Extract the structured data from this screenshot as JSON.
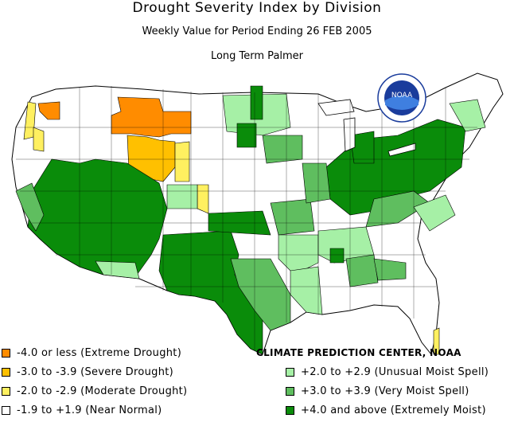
{
  "title": "Drought Severity Index by Division",
  "subtitle": "Weekly Value for Period Ending 26 FEB 2005",
  "index_name": "Long Term Palmer",
  "credit": "CLIMATE PREDICTION CENTER, NOAA",
  "logo_text": "NOAA",
  "legend": [
    {
      "label": "-4.0 or less (Extreme Drought)",
      "color": "#FF8C00"
    },
    {
      "label": "-3.0 to -3.9 (Severe Drought)",
      "color": "#FFC000"
    },
    {
      "label": "-2.0 to -2.9 (Moderate Drought)",
      "color": "#FFF060"
    },
    {
      "label": "-1.9 to +1.9 (Near Normal)",
      "color": "#FFFFFF"
    },
    {
      "label": "+2.0 to +2.9 (Unusual Moist Spell)",
      "color": "#A6F0A6"
    },
    {
      "label": "+3.0 to +3.9 (Very Moist Spell)",
      "color": "#5FBE5F"
    },
    {
      "label": "+4.0 and above (Extremely Moist)",
      "color": "#0A8C0A"
    }
  ]
}
